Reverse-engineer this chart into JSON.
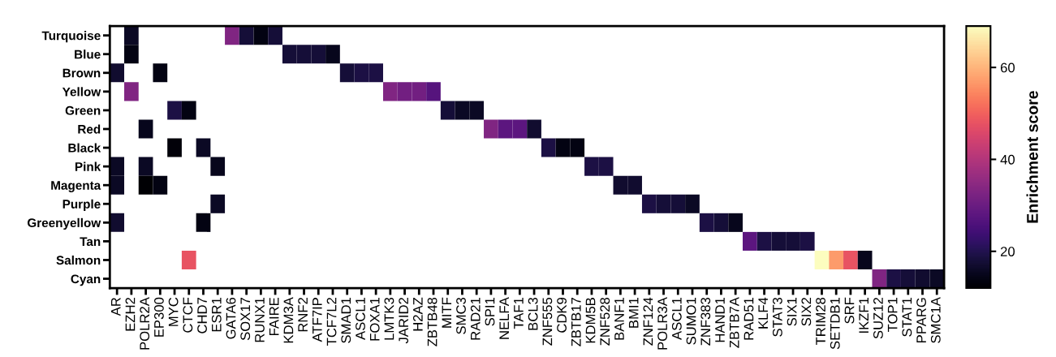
{
  "chart_data": {
    "type": "heatmap",
    "clabel": "Enrichment score",
    "categories": [
      "AR",
      "EZH2",
      "POLR2A",
      "EP300",
      "MYC",
      "CTCF",
      "CHD7",
      "ESR1",
      "GATA6",
      "SOX17",
      "RUNX1",
      "FAIRE",
      "KDM3A",
      "RNF2",
      "ATF7IP",
      "TCF7L2",
      "SMAD1",
      "ASCL1",
      "FOXA1",
      "LMTK3",
      "JARID2",
      "H2AZ",
      "ZBTB48",
      "MITF",
      "SMC3",
      "RAD21",
      "SPI1",
      "NELFA",
      "TAF1",
      "BCL3",
      "ZNF555",
      "CDK9",
      "ZBTB17",
      "KDM5B",
      "ZNF528",
      "BANF1",
      "BMI1",
      "ZNF124",
      "POLR3A",
      "ASCL1",
      "SUMO1",
      "ZNF383",
      "HAND1",
      "ZBTB7A",
      "RAD51",
      "KLF4",
      "STAT3",
      "SIX1",
      "SIX2",
      "TRIM28",
      "SETDB1",
      "SRF",
      "IKZF1",
      "SUZ12",
      "TOP1",
      "STAT1",
      "PPARG",
      "SMC1A"
    ],
    "y_categories": [
      "Turquoise",
      "Blue",
      "Brown",
      "Yellow",
      "Green",
      "Red",
      "Black",
      "Pink",
      "Magenta",
      "Purple",
      "Greenyellow",
      "Tan",
      "Salmon",
      "Cyan"
    ],
    "cells": [
      [
        null,
        16,
        null,
        null,
        null,
        null,
        null,
        null,
        33,
        18,
        14,
        18,
        null,
        null,
        null,
        null,
        null,
        null,
        null,
        null,
        null,
        null,
        null,
        null,
        null,
        null,
        null,
        null,
        null,
        null,
        null,
        null,
        null,
        null,
        null,
        null,
        null,
        null,
        null,
        null,
        null,
        null,
        null,
        null,
        null,
        null,
        null,
        null,
        null,
        null,
        null,
        null,
        null,
        null,
        null,
        null,
        null,
        null
      ],
      [
        null,
        14,
        null,
        null,
        null,
        null,
        null,
        null,
        null,
        null,
        null,
        null,
        18,
        18,
        18,
        15,
        null,
        null,
        null,
        null,
        null,
        null,
        null,
        null,
        null,
        null,
        null,
        null,
        null,
        null,
        null,
        null,
        null,
        null,
        null,
        null,
        null,
        null,
        null,
        null,
        null,
        null,
        null,
        null,
        null,
        null,
        null,
        null,
        null,
        null,
        null,
        null,
        null,
        null,
        null,
        null,
        null,
        null
      ],
      [
        17,
        null,
        null,
        14,
        null,
        null,
        null,
        null,
        null,
        null,
        null,
        null,
        null,
        null,
        null,
        null,
        18,
        19,
        19,
        null,
        null,
        null,
        null,
        null,
        null,
        null,
        null,
        null,
        null,
        null,
        null,
        null,
        null,
        null,
        null,
        null,
        null,
        null,
        null,
        null,
        null,
        null,
        null,
        null,
        null,
        null,
        null,
        null,
        null,
        null,
        null,
        null,
        null,
        null,
        null,
        null,
        null,
        null
      ],
      [
        null,
        33,
        null,
        null,
        null,
        null,
        null,
        null,
        null,
        null,
        null,
        null,
        null,
        null,
        null,
        null,
        null,
        null,
        null,
        33,
        31,
        31,
        27,
        null,
        null,
        null,
        null,
        null,
        null,
        null,
        null,
        null,
        null,
        null,
        null,
        null,
        null,
        null,
        null,
        null,
        null,
        null,
        null,
        null,
        null,
        null,
        null,
        null,
        null,
        null,
        null,
        null,
        null,
        null,
        null,
        null,
        null,
        null
      ],
      [
        null,
        null,
        null,
        null,
        19,
        14,
        null,
        null,
        null,
        null,
        null,
        null,
        null,
        null,
        null,
        null,
        null,
        null,
        null,
        null,
        null,
        null,
        null,
        18,
        16,
        16,
        null,
        null,
        null,
        null,
        null,
        null,
        null,
        null,
        null,
        null,
        null,
        null,
        null,
        null,
        null,
        null,
        null,
        null,
        null,
        null,
        null,
        null,
        null,
        null,
        null,
        null,
        null,
        null,
        null,
        null,
        null,
        null
      ],
      [
        null,
        null,
        15,
        null,
        null,
        null,
        null,
        null,
        null,
        null,
        null,
        null,
        null,
        null,
        null,
        null,
        null,
        null,
        null,
        null,
        null,
        null,
        null,
        null,
        null,
        null,
        33,
        28,
        28,
        17,
        null,
        null,
        null,
        null,
        null,
        null,
        null,
        null,
        null,
        null,
        null,
        null,
        null,
        null,
        null,
        null,
        null,
        null,
        null,
        null,
        null,
        null,
        null,
        null,
        null,
        null,
        null,
        null
      ],
      [
        null,
        null,
        null,
        null,
        13,
        null,
        16,
        null,
        null,
        null,
        null,
        null,
        null,
        null,
        null,
        null,
        null,
        null,
        null,
        null,
        null,
        null,
        null,
        null,
        null,
        null,
        null,
        null,
        null,
        null,
        19,
        14,
        14,
        null,
        null,
        null,
        null,
        null,
        null,
        null,
        null,
        null,
        null,
        null,
        null,
        null,
        null,
        null,
        null,
        null,
        null,
        null,
        null,
        null,
        null,
        null,
        null,
        null
      ],
      [
        16,
        null,
        16,
        null,
        null,
        null,
        null,
        15,
        null,
        null,
        null,
        null,
        null,
        null,
        null,
        null,
        null,
        null,
        null,
        null,
        null,
        null,
        null,
        null,
        null,
        null,
        null,
        null,
        null,
        null,
        null,
        null,
        null,
        19,
        19,
        null,
        null,
        null,
        null,
        null,
        null,
        null,
        null,
        null,
        null,
        null,
        null,
        null,
        null,
        null,
        null,
        null,
        null,
        null,
        null,
        null,
        null,
        null
      ],
      [
        16,
        null,
        12,
        14,
        null,
        null,
        null,
        null,
        null,
        null,
        null,
        null,
        null,
        null,
        null,
        null,
        null,
        null,
        null,
        null,
        null,
        null,
        null,
        null,
        null,
        null,
        null,
        null,
        null,
        null,
        null,
        null,
        null,
        null,
        null,
        17,
        17,
        null,
        null,
        null,
        null,
        null,
        null,
        null,
        null,
        null,
        null,
        null,
        null,
        null,
        null,
        null,
        null,
        null,
        null,
        null,
        null,
        null
      ],
      [
        null,
        null,
        null,
        null,
        null,
        null,
        null,
        16,
        null,
        null,
        null,
        null,
        null,
        null,
        null,
        null,
        null,
        null,
        null,
        null,
        null,
        null,
        null,
        null,
        null,
        null,
        null,
        null,
        null,
        null,
        null,
        null,
        null,
        null,
        null,
        null,
        null,
        19,
        18,
        18,
        16,
        null,
        null,
        null,
        null,
        null,
        null,
        null,
        null,
        null,
        null,
        null,
        null,
        null,
        null,
        null,
        null,
        null
      ],
      [
        17,
        null,
        null,
        null,
        null,
        null,
        14,
        null,
        null,
        null,
        null,
        null,
        null,
        null,
        null,
        null,
        null,
        null,
        null,
        null,
        null,
        null,
        null,
        null,
        null,
        null,
        null,
        null,
        null,
        null,
        null,
        null,
        null,
        null,
        null,
        null,
        null,
        null,
        null,
        null,
        null,
        19,
        18,
        15,
        null,
        null,
        null,
        null,
        null,
        null,
        null,
        null,
        null,
        null,
        null,
        null,
        null,
        null
      ],
      [
        null,
        null,
        null,
        null,
        null,
        null,
        null,
        null,
        null,
        null,
        null,
        null,
        null,
        null,
        null,
        null,
        null,
        null,
        null,
        null,
        null,
        null,
        null,
        null,
        null,
        null,
        null,
        null,
        null,
        null,
        null,
        null,
        null,
        null,
        null,
        null,
        null,
        null,
        null,
        null,
        null,
        null,
        null,
        null,
        28,
        19,
        18,
        18,
        19,
        null,
        null,
        null,
        null,
        null,
        null,
        null,
        null,
        null
      ],
      [
        null,
        null,
        null,
        null,
        null,
        48,
        null,
        null,
        null,
        null,
        null,
        null,
        null,
        null,
        null,
        null,
        null,
        null,
        null,
        null,
        null,
        null,
        null,
        null,
        null,
        null,
        null,
        null,
        null,
        null,
        null,
        null,
        null,
        null,
        null,
        null,
        null,
        null,
        null,
        null,
        null,
        null,
        null,
        null,
        null,
        null,
        null,
        null,
        null,
        69,
        57,
        48,
        15,
        null,
        null,
        null,
        null,
        null
      ],
      [
        null,
        null,
        null,
        null,
        null,
        null,
        null,
        null,
        null,
        null,
        null,
        null,
        null,
        null,
        null,
        null,
        null,
        null,
        null,
        null,
        null,
        null,
        null,
        null,
        null,
        null,
        null,
        null,
        null,
        null,
        null,
        null,
        null,
        null,
        null,
        null,
        null,
        null,
        null,
        null,
        null,
        null,
        null,
        null,
        null,
        null,
        null,
        null,
        null,
        null,
        null,
        null,
        null,
        33,
        19,
        18,
        17,
        16
      ]
    ],
    "clim": [
      12,
      69
    ],
    "cticks": [
      20,
      40,
      60
    ]
  }
}
